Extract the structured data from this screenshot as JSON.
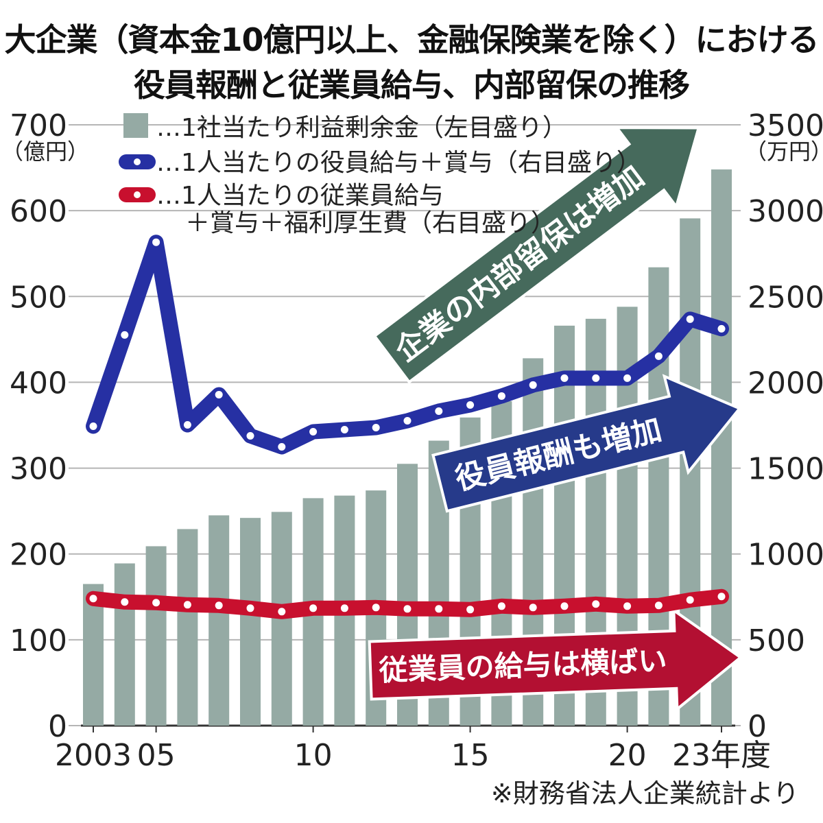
{
  "title": {
    "line1": "大企業（資本金10億円以上、金融保険業を除く）における",
    "line2": "役員報酬と従業員給与、内部留保の推移"
  },
  "source": "※財務省法人企業統計より",
  "colors": {
    "bar": "#95aaa4",
    "executive": "#2630a3",
    "employee": "#c8102e",
    "arrow_retained": "#466a5c",
    "arrow_executive": "#263a8a",
    "arrow_employee": "#b31032"
  },
  "annotations": {
    "retained": "企業の内部留保は増加",
    "executive": "役員報酬も増加",
    "employee": "従業員の給与は横ばい"
  },
  "chart_data": {
    "type": "bar+line",
    "title": "大企業（資本金10億円以上、金融保険業を除く）における役員報酬と従業員給与、内部留保の推移",
    "x": [
      2003,
      2004,
      2005,
      2006,
      2007,
      2008,
      2009,
      2010,
      2011,
      2012,
      2013,
      2014,
      2015,
      2016,
      2017,
      2018,
      2019,
      2020,
      2021,
      2022,
      2023
    ],
    "x_tick_labels": [
      {
        "year": 2003,
        "label": "2003"
      },
      {
        "year": 2005,
        "label": "05"
      },
      {
        "year": 2010,
        "label": "10"
      },
      {
        "year": 2015,
        "label": "15"
      },
      {
        "year": 2020,
        "label": "20"
      },
      {
        "year": 2023,
        "label": "23年度"
      }
    ],
    "left_axis": {
      "unit": "（億円）",
      "ylim": [
        0,
        700
      ],
      "ticks": [
        "0",
        "100",
        "200",
        "300",
        "400",
        "500",
        "600",
        "700"
      ]
    },
    "right_axis": {
      "unit": "（万円）",
      "ylim": [
        0,
        3500
      ],
      "ticks": [
        "0",
        "500",
        "1000",
        "1500",
        "2000",
        "2500",
        "3000",
        "3500"
      ]
    },
    "grid": true,
    "legend_position": "top",
    "series": [
      {
        "name": "…1社当たり利益剰余金（左目盛り）",
        "type": "bar",
        "axis": "left",
        "values": [
          165,
          189,
          209,
          229,
          245,
          242,
          249,
          265,
          268,
          274,
          305,
          332,
          359,
          378,
          428,
          466,
          474,
          488,
          534,
          591,
          648
        ]
      },
      {
        "name": "…1人当たりの役員給与＋賞与（右目盛り）",
        "type": "line",
        "axis": "right",
        "values": [
          1744,
          2276,
          2816,
          1752,
          1928,
          1688,
          1624,
          1712,
          1724,
          1736,
          1776,
          1832,
          1868,
          1920,
          1984,
          2024,
          2024,
          2024,
          2152,
          2368,
          2312
        ]
      },
      {
        "name": "…1人当たりの従業員給与",
        "name_line2": "＋賞与＋福利厚生費（右目盛り）",
        "type": "line",
        "axis": "right",
        "values": [
          740,
          720,
          716,
          704,
          700,
          684,
          664,
          684,
          684,
          688,
          680,
          680,
          676,
          696,
          688,
          696,
          708,
          696,
          700,
          732,
          752
        ]
      }
    ]
  }
}
